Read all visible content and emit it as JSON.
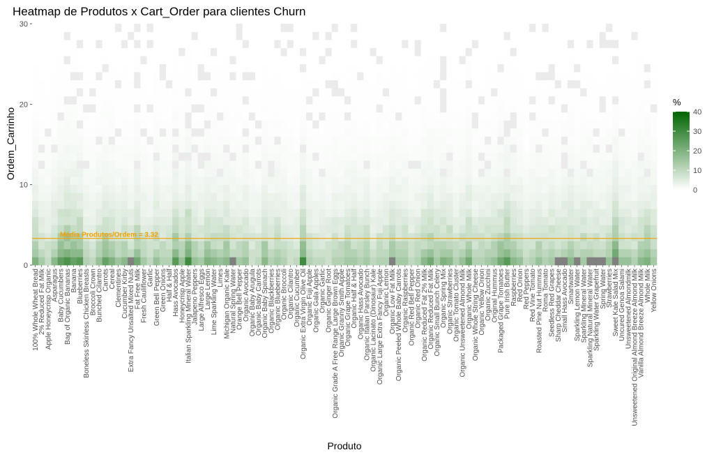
{
  "chart_data": {
    "type": "heatmap",
    "title": "Heatmap de Produtos x Cart_Order para clientes Churn",
    "xlabel": "Produto",
    "ylabel": "Ordem_Carrinho",
    "ylim": [
      0,
      30
    ],
    "y_ticks": [
      0,
      10,
      20,
      30
    ],
    "grid": true,
    "legend": {
      "title": "%",
      "position": "right",
      "ticks": [
        0,
        10,
        20,
        30,
        40
      ],
      "range": [
        0,
        40
      ],
      "low_color": "#ffffff",
      "high_color": "#006400"
    },
    "reference_line": {
      "y": 3.32,
      "label": "Média Produtos/Ordem = 3.32",
      "color": "#f5a000"
    },
    "categories": [
      "100% Whole Wheat Bread",
      "2% Reduced Fat Milk",
      "Apple Honeycrisp Organic",
      "Asparagus",
      "Baby Cucumbers",
      "Bag of Organic Bananas",
      "Banana",
      "Blueberries",
      "Boneless Skinless Chicken Breasts",
      "Broccoli Crown",
      "Bunched Cilantro",
      "Carrots",
      "Cereal",
      "Clementines",
      "Cucumber Kirby",
      "Extra Fancy Unsalted Mixed Nuts",
      "Fat Free Milk",
      "Fresh Cauliflower",
      "Garlic",
      "Green Bell Pepper",
      "Green Onions",
      "Half & Half",
      "Hass Avocados",
      "Honeycrisp Apple",
      "Italian Sparkling Mineral Water",
      "Jalapeno Peppers",
      "Large Alfresco Eggs",
      "Large Lemon",
      "Lime Sparkling Water",
      "Limes",
      "Michigan Organic Kale",
      "Natural Spring Water",
      "Orange Bell Pepper",
      "Organic Avocado",
      "Organic Baby Arugula",
      "Organic Baby Carrots",
      "Organic Baby Spinach",
      "Organic Blackberries",
      "Organic Blueberries",
      "Organic Broccoli",
      "Organic Cilantro",
      "Organic Cucumber",
      "Organic Extra Virgin Olive Oil",
      "Organic Fuji Apple",
      "Organic Gala Apples",
      "Organic Garlic",
      "Organic Ginger Root",
      "Organic Grade A Free Range Large Brown Eggs",
      "Organic Granny Smith Apple",
      "Organic Grape Tomatoes",
      "Organic Half & Half",
      "Organic Hass Avocado",
      "Organic Italian Parsley Bunch",
      "Organic Lacinato (Dinosaur) Kale",
      "Organic Large Extra Fancy Fuji Apple",
      "Organic Lemon",
      "Organic Low Fat Milk",
      "Organic Peeled Whole Baby Carrots",
      "Organic Raspberries",
      "Organic Red Bell Pepper",
      "Organic Red Onion",
      "Organic Reduced Fat 2% Milk",
      "Organic Reduced Fat Milk",
      "Organic Small Bunch Celery",
      "Organic Spring Mix",
      "Organic Strawberries",
      "Organic Tomato Cluster",
      "Organic Unsweetened Almond Milk",
      "Organic Whole Milk",
      "Organic Whole String Cheese",
      "Organic Yellow Onion",
      "Organic Zucchini",
      "Original Hummus",
      "Packaged Grape Tomatoes",
      "Pure Irish Butter",
      "Raspberries",
      "Red Onion",
      "Red Peppers",
      "Red Vine Tomato",
      "Roasted Pine Nut Hummus",
      "Roma Tomato",
      "Seedless Red Grapes",
      "Sharp Cheddar Cheese",
      "Small Hass Avocado",
      "Smartwater",
      "Sparkling Lemon Water",
      "Sparkling Mineral Water",
      "Sparkling Natural Mineral Water",
      "Sparkling Water Grapefruit",
      "Spring Water",
      "Strawberries",
      "Sweet Kale Salad Mix",
      "Uncured Genoa Salami",
      "Unsweetened Almondmilk",
      "Unsweetened Original Almond Breeze Almond Milk",
      "Vanilla Almond Breeze Almond Milk",
      "Whole Milk",
      "Yellow Onions"
    ],
    "x_tick_labels": [
      "100% Whole Wheat Bread",
      "2% Reduced Fat Milk",
      "Apple Honeycrisp Organic",
      "Asparagus",
      "Baby Cucumbers",
      "Bag of Organic Bananas",
      "Banana",
      "Blueberries",
      "Boneless Skinless Chicken Breasts",
      "Broccoli Crown",
      "Bunched Cilantro",
      "Carrots",
      "Cereal",
      "Clementines",
      "Cucumber Kirby",
      "Extra Fancy Unsalted Mixed Nuts",
      "Fat Free Milk",
      "Fresh Cauliflower",
      "Garlic",
      "Green Bell Pepper",
      "Green Onions",
      "Half & Half",
      "Hass Avocados",
      "Honeycrisp Apple",
      "Italian Sparkling Mineral Water",
      "Jalapeno Peppers",
      "Large Alfresco Eggs",
      "Large Lemon",
      "Lime Sparkling Water",
      "Limes",
      "Michigan Organic Kale",
      "Natural Spring Water",
      "Orange Bell Pepper",
      "Organic Avocado",
      "Organic Baby Arugula",
      "Organic Baby Carrots",
      "Organic Baby Spinach",
      "Organic Blackberries",
      "Organic Blueberries",
      "Organic Broccoli",
      "Organic Cilantro",
      "Organic Cucumber",
      "Organic Extra Virgin Olive Oil",
      "Organic Fuji Apple",
      "Organic Gala Apples",
      "Organic Garlic",
      "Organic Ginger Root",
      "Organic Grade A Free Range Large Brown Eggs",
      "Organic Granny Smith Apple",
      "Organic Grape Tomatoes",
      "Organic Half & Half",
      "Organic Hass Avocado",
      "Organic Italian Parsley Bunch",
      "Organic Lacinato (Dinosaur) Kale",
      "Organic Large Extra Fancy Fuji Apple",
      "Organic Lemon",
      "Organic Low Fat Milk",
      "Organic Peeled Whole Baby Carrots",
      "Organic Raspberries",
      "Organic Red Bell Pepper",
      "Organic Red Onion",
      "Organic Reduced Fat 2% Milk",
      "Organic Reduced Fat Milk",
      "Organic Small Bunch Celery",
      "Organic Spring Mix",
      "Organic Strawberries",
      "Organic Tomato Cluster",
      "Organic Unsweetened Almond Milk",
      "Organic Whole Milk",
      "Organic Whole String Cheese",
      "Organic Yellow Onion",
      "Organic Zucchini",
      "Original Hummus",
      "Packaged Grape Tomatoes",
      "Pure Irish Butter",
      "Raspberries",
      "Red Onion",
      "Red Peppers",
      "Red Vine Tomato",
      "Roasted Pine Nut Hummus",
      "Roma Tomato",
      "Seedless Red Grapes",
      "Sharp Cheddar Cheese",
      "Small Hass Avocado",
      "Smartwater",
      "Sparkling Lemon Water",
      "Sparkling Mineral Water",
      "Sparkling Natural Mineral Water",
      "Sparkling Water Grapefruit",
      "Spring Water",
      "Strawberries",
      "Sweet Kale Salad Mix",
      "Uncured Genoa Salami",
      "Unsweetened Almondmilk",
      "Unsweetened Original Almond Breeze Almond Milk",
      "Vanilla Almond Breeze Almond Milk",
      "Whole Milk",
      "Yellow Onions"
    ],
    "y_rows": 30,
    "row1_values": [
      20,
      14,
      9,
      18,
      25,
      28,
      24,
      26,
      12,
      10,
      16,
      24,
      20,
      15,
      18,
      12,
      22,
      14,
      10,
      16,
      12,
      12,
      26,
      16,
      30,
      16,
      14,
      20,
      18,
      16,
      18,
      12,
      14,
      16,
      8,
      10,
      18,
      12,
      14,
      12,
      8,
      10,
      30,
      12,
      10,
      10,
      8,
      12,
      12,
      14,
      14,
      12,
      14,
      10,
      12,
      12,
      20,
      14,
      14,
      10,
      12,
      18,
      22,
      14,
      20,
      18,
      12,
      16,
      22,
      12,
      12,
      14,
      16,
      22,
      26,
      18,
      16,
      10,
      12,
      16,
      12,
      14,
      12,
      16,
      18,
      12,
      14,
      16,
      12,
      12,
      16,
      34,
      16,
      16,
      12,
      18,
      20,
      14
    ],
    "missing_row1": [
      15,
      31,
      56,
      82,
      83,
      85,
      87,
      88,
      89,
      91
    ],
    "row2_values": [
      14,
      10,
      8,
      12,
      18,
      20,
      18,
      18,
      10,
      8,
      12,
      16,
      14,
      10,
      12,
      10,
      16,
      10,
      8,
      12,
      10,
      10,
      18,
      12,
      20,
      12,
      10,
      16,
      14,
      12,
      14,
      10,
      10,
      12,
      8,
      8,
      14,
      10,
      12,
      10,
      8,
      8,
      18,
      10,
      8,
      8,
      8,
      10,
      10,
      12,
      12,
      10,
      12,
      8,
      10,
      10,
      14,
      12,
      12,
      8,
      10,
      14,
      16,
      12,
      14,
      14,
      10,
      12,
      16,
      10,
      10,
      12,
      12,
      16,
      18,
      14,
      12,
      8,
      10,
      12,
      10,
      12,
      10,
      12,
      14,
      10,
      12,
      12,
      10,
      10,
      12,
      22,
      12,
      12,
      10,
      14,
      16,
      12
    ],
    "decay": 0.82,
    "missing_prob": 0.06
  }
}
